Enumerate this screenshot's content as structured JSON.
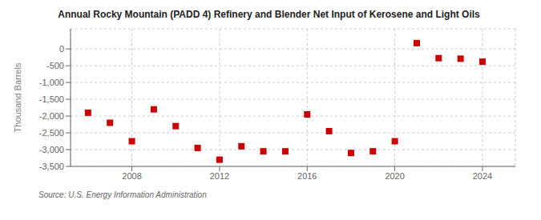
{
  "chart_data": {
    "type": "scatter",
    "title": "Annual Rocky Mountain (PADD 4) Refinery and Blender Net Input of Kerosene and Light Oils",
    "ylabel": "Thousand Barrels",
    "annotations": [
      "Source: U.S. Energy Information Administration"
    ],
    "x": [
      2006,
      2007,
      2008,
      2009,
      2010,
      2011,
      2012,
      2013,
      2014,
      2015,
      2016,
      2017,
      2018,
      2019,
      2020,
      2021,
      2022,
      2023,
      2024
    ],
    "values": [
      -1900,
      -2200,
      -2750,
      -1800,
      -2300,
      -2950,
      -3300,
      -2900,
      -3050,
      -3050,
      -1950,
      -2450,
      -3100,
      -3050,
      -2750,
      175,
      -275,
      -290,
      -380
    ],
    "color": "#cc0000",
    "marker": "square",
    "xlim": [
      2005.2,
      2025.5
    ],
    "xticks": [
      2008,
      2012,
      2016,
      2020,
      2024
    ],
    "ylim": [
      -3500,
      600
    ],
    "yticks": [
      0,
      -500,
      {
        "value": -1000,
        "label": "-1,000"
      },
      {
        "value": -1500,
        "label": "-1,500"
      },
      {
        "value": -2000,
        "label": "-2,000"
      },
      {
        "value": -2500,
        "label": "-2,500"
      },
      {
        "value": -3000,
        "label": "-3,000"
      },
      {
        "value": -3500,
        "label": "-3,500"
      }
    ],
    "grid": true
  }
}
